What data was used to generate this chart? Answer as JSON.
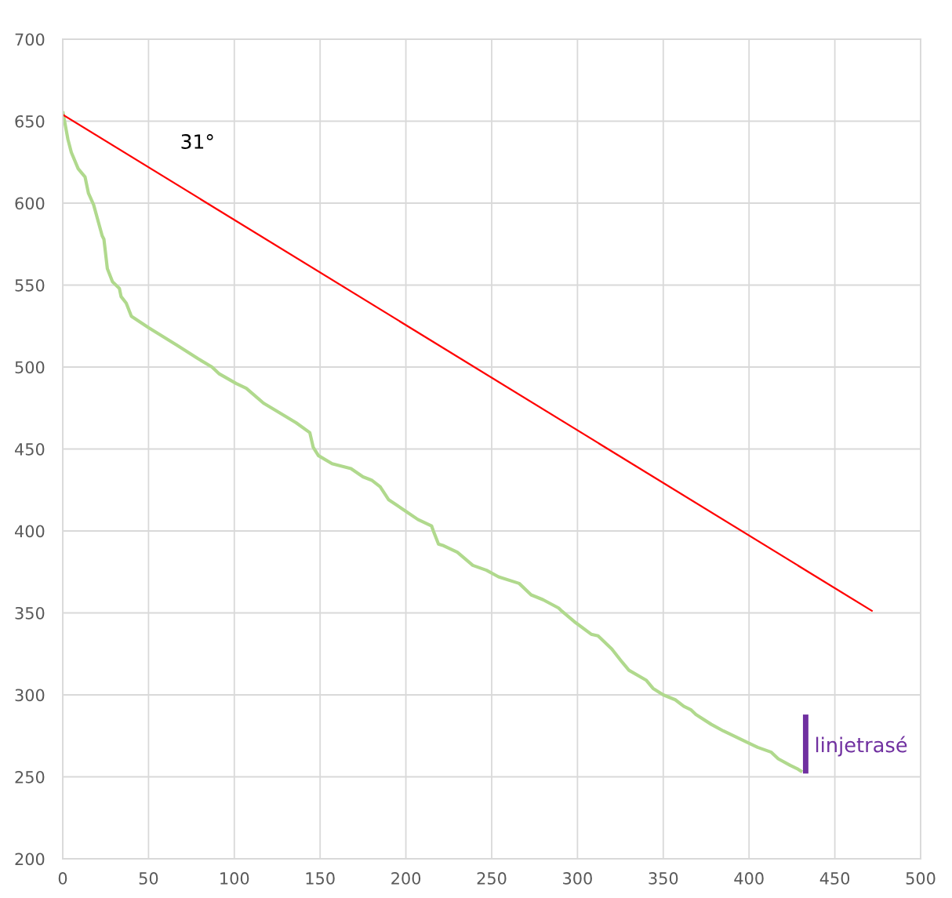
{
  "chart_data": {
    "type": "line",
    "xlim": [
      0,
      500
    ],
    "xticks": [
      0,
      50,
      100,
      150,
      200,
      250,
      300,
      350,
      400,
      450,
      500
    ],
    "ylim": [
      200,
      700
    ],
    "yticks": [
      200,
      250,
      300,
      350,
      400,
      450,
      500,
      550,
      600,
      650,
      700
    ],
    "grid": true,
    "legend": false,
    "marker": "none",
    "line_style": "solid",
    "annotations": [
      "31°"
    ],
    "series": [
      {
        "color": "#b0d98d",
        "x": [
          0,
          3,
          5,
          9,
          13,
          15,
          18,
          23,
          24,
          26,
          29,
          33,
          34,
          37,
          40,
          50,
          67,
          79,
          87,
          91,
          101,
          107,
          117,
          125,
          136,
          144,
          146,
          149,
          157,
          168,
          175,
          180,
          185,
          190,
          200,
          207,
          215,
          216,
          219,
          222,
          230,
          239,
          247,
          254,
          266,
          273,
          280,
          289,
          291,
          299,
          308,
          312,
          320,
          326,
          330,
          340,
          344,
          350,
          357,
          362,
          366,
          369,
          378,
          385,
          399,
          405,
          413,
          417,
          424,
          428,
          431
        ],
        "values": [
          656,
          639,
          631,
          621,
          616,
          606,
          599,
          580,
          578,
          560,
          552,
          548,
          543,
          539,
          531,
          524,
          513,
          505,
          500,
          496,
          490,
          487,
          478,
          473,
          466,
          460,
          451,
          446,
          441,
          438,
          433,
          431,
          427,
          419,
          412,
          407,
          403,
          400,
          392,
          391,
          387,
          379,
          376,
          372,
          368,
          361,
          358,
          353,
          351,
          344,
          337,
          336,
          328,
          320,
          315,
          309,
          304,
          300,
          297,
          293,
          291,
          288,
          282,
          278,
          271,
          268,
          265,
          261,
          257,
          255,
          253
        ]
      },
      {
        "color": "#ff0000",
        "x": [
          0,
          472
        ],
        "values": [
          654,
          351
        ]
      },
      {
        "name": "linjetrasé",
        "color": "#7030a0",
        "x": [
          433,
          433
        ],
        "values": [
          252,
          288
        ]
      }
    ]
  }
}
